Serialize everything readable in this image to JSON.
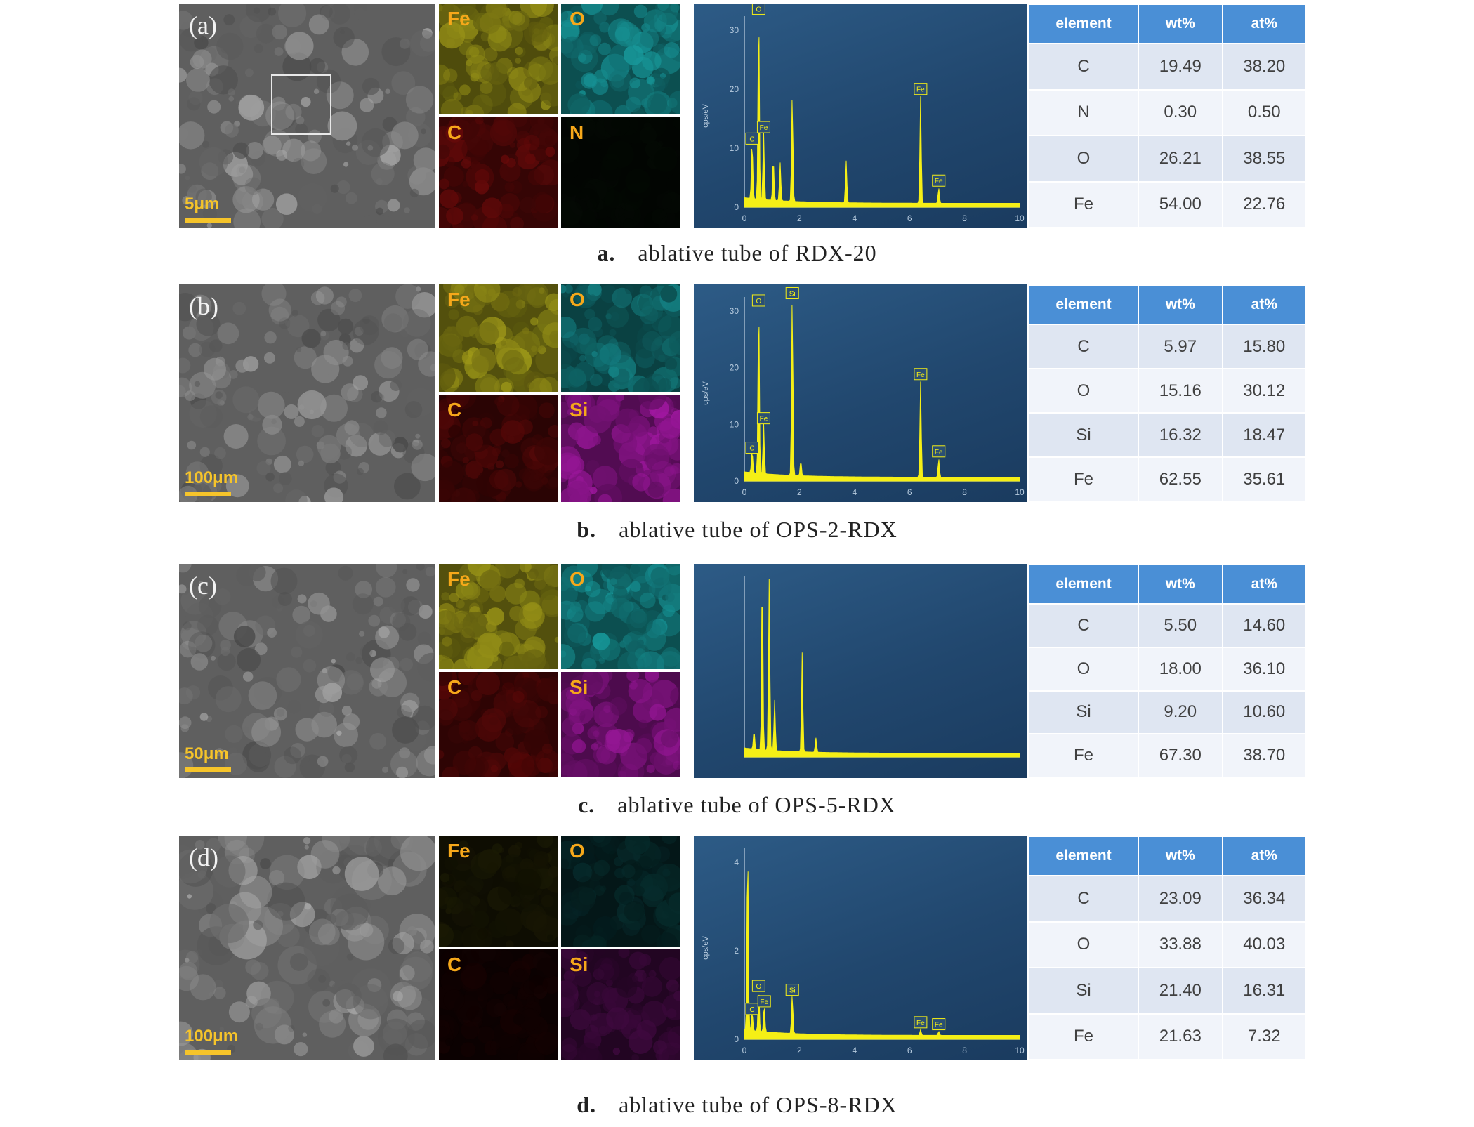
{
  "colors": {
    "fe": "#a8a21a",
    "o": "#1aa8ab",
    "c": "#8a0d0d",
    "n": "#0d1f0d",
    "si": "#b01ab0",
    "spectrum": "#f5ef16"
  },
  "panels": [
    {
      "sem_label": "(a)",
      "scale": "5μm",
      "maps": [
        {
          "label": "Fe",
          "tone": "fe",
          "intensity": 0.85
        },
        {
          "label": "O",
          "tone": "o",
          "intensity": 0.85
        },
        {
          "label": "C",
          "tone": "c",
          "intensity": 0.7
        },
        {
          "label": "N",
          "tone": "n",
          "intensity": 0.3
        }
      ],
      "eds_ticks": [
        "30",
        "20",
        "10",
        "0"
      ],
      "eds_xticks": [
        "0",
        "2",
        "4",
        "6",
        "8",
        "10"
      ],
      "eds_ylabel": "cps/eV",
      "peaks": [
        {
          "x": 0.28,
          "h": 0.3,
          "label": "C"
        },
        {
          "x": 0.52,
          "h": 0.98,
          "label": "O"
        },
        {
          "x": 0.7,
          "h": 0.36,
          "label": "Fe"
        },
        {
          "x": 1.05,
          "h": 0.22,
          "label": ""
        },
        {
          "x": 1.3,
          "h": 0.2,
          "label": ""
        },
        {
          "x": 1.74,
          "h": 0.55,
          "label": ""
        },
        {
          "x": 3.7,
          "h": 0.22,
          "label": ""
        },
        {
          "x": 6.4,
          "h": 0.56,
          "label": "Fe"
        },
        {
          "x": 7.06,
          "h": 0.08,
          "label": "Fe"
        }
      ],
      "element_header": "element",
      "wt_header": "wt%",
      "at_header": "at%",
      "rows": [
        {
          "el": "C",
          "wt": "19.49",
          "at": "38.20"
        },
        {
          "el": "N",
          "wt": "0.30",
          "at": "0.50"
        },
        {
          "el": "O",
          "wt": "26.21",
          "at": "38.55"
        },
        {
          "el": "Fe",
          "wt": "54.00",
          "at": "22.76"
        }
      ],
      "caption_letter": "a.",
      "caption_text": "ablative tube of RDX-20"
    },
    {
      "sem_label": "(b)",
      "scale": "100μm",
      "maps": [
        {
          "label": "Fe",
          "tone": "fe",
          "intensity": 0.9
        },
        {
          "label": "O",
          "tone": "o",
          "intensity": 0.7
        },
        {
          "label": "C",
          "tone": "c",
          "intensity": 0.55
        },
        {
          "label": "Si",
          "tone": "si",
          "intensity": 0.85
        }
      ],
      "eds_ticks": [
        "30",
        "20",
        "10",
        "0"
      ],
      "eds_xticks": [
        "0",
        "2",
        "4",
        "6",
        "8",
        "10"
      ],
      "eds_ylabel": "cps/eV",
      "peaks": [
        {
          "x": 0.28,
          "h": 0.12,
          "label": "C"
        },
        {
          "x": 0.52,
          "h": 0.92,
          "label": "O"
        },
        {
          "x": 0.7,
          "h": 0.28,
          "label": "Fe"
        },
        {
          "x": 1.74,
          "h": 0.96,
          "label": "Si"
        },
        {
          "x": 2.05,
          "h": 0.08,
          "label": ""
        },
        {
          "x": 6.4,
          "h": 0.52,
          "label": "Fe"
        },
        {
          "x": 7.06,
          "h": 0.1,
          "label": "Fe"
        }
      ],
      "element_header": "element",
      "wt_header": "wt%",
      "at_header": "at%",
      "rows": [
        {
          "el": "C",
          "wt": "5.97",
          "at": "15.80"
        },
        {
          "el": "O",
          "wt": "15.16",
          "at": "30.12"
        },
        {
          "el": "Si",
          "wt": "16.32",
          "at": "18.47"
        },
        {
          "el": "Fe",
          "wt": "62.55",
          "at": "35.61"
        }
      ],
      "caption_letter": "b.",
      "caption_text": "ablative tube of OPS-2-RDX"
    },
    {
      "sem_label": "(c)",
      "scale": "50μm",
      "maps": [
        {
          "label": "Fe",
          "tone": "fe",
          "intensity": 0.9
        },
        {
          "label": "O",
          "tone": "o",
          "intensity": 0.85
        },
        {
          "label": "C",
          "tone": "c",
          "intensity": 0.6
        },
        {
          "label": "Si",
          "tone": "si",
          "intensity": 0.8
        }
      ],
      "eds_ticks": [],
      "eds_xticks": [],
      "eds_ylabel": "",
      "peaks": [
        {
          "x": 0.35,
          "h": 0.1,
          "label": ""
        },
        {
          "x": 0.65,
          "h": 0.99,
          "label": ""
        },
        {
          "x": 0.9,
          "h": 0.95,
          "label": ""
        },
        {
          "x": 1.1,
          "h": 0.28,
          "label": ""
        },
        {
          "x": 2.1,
          "h": 0.55,
          "label": ""
        },
        {
          "x": 2.6,
          "h": 0.08,
          "label": ""
        }
      ],
      "element_header": "element",
      "wt_header": "wt%",
      "at_header": "at%",
      "rows": [
        {
          "el": "C",
          "wt": "5.50",
          "at": "14.60"
        },
        {
          "el": "O",
          "wt": "18.00",
          "at": "36.10"
        },
        {
          "el": "Si",
          "wt": "9.20",
          "at": "10.60"
        },
        {
          "el": "Fe",
          "wt": "67.30",
          "at": "38.70"
        }
      ],
      "caption_letter": "c.",
      "caption_text": "ablative tube of OPS-5-RDX"
    },
    {
      "sem_label": "(d)",
      "scale": "100μm",
      "maps": [
        {
          "label": "Fe",
          "tone": "fe",
          "intensity": 0.15
        },
        {
          "label": "O",
          "tone": "o",
          "intensity": 0.25
        },
        {
          "label": "C",
          "tone": "c",
          "intensity": 0.15
        },
        {
          "label": "Si",
          "tone": "si",
          "intensity": 0.35
        }
      ],
      "eds_ticks": [
        "4",
        "2",
        "0"
      ],
      "eds_xticks": [
        "0",
        "2",
        "4",
        "6",
        "8",
        "10"
      ],
      "eds_ylabel": "cps/eV",
      "peaks": [
        {
          "x": 0.12,
          "h": 0.96,
          "label": ""
        },
        {
          "x": 0.28,
          "h": 0.1,
          "label": "C"
        },
        {
          "x": 0.52,
          "h": 0.22,
          "label": "O"
        },
        {
          "x": 0.72,
          "h": 0.14,
          "label": "Fe"
        },
        {
          "x": 1.74,
          "h": 0.2,
          "label": "Si"
        },
        {
          "x": 6.4,
          "h": 0.03,
          "label": "Fe"
        },
        {
          "x": 7.06,
          "h": 0.02,
          "label": "Fe"
        }
      ],
      "element_header": "element",
      "wt_header": "wt%",
      "at_header": "at%",
      "rows": [
        {
          "el": "C",
          "wt": "23.09",
          "at": "36.34"
        },
        {
          "el": "O",
          "wt": "33.88",
          "at": "40.03"
        },
        {
          "el": "Si",
          "wt": "21.40",
          "at": "16.31"
        },
        {
          "el": "Fe",
          "wt": "21.63",
          "at": "7.32"
        }
      ],
      "caption_letter": "d.",
      "caption_text": "ablative tube of OPS-8-RDX"
    }
  ]
}
